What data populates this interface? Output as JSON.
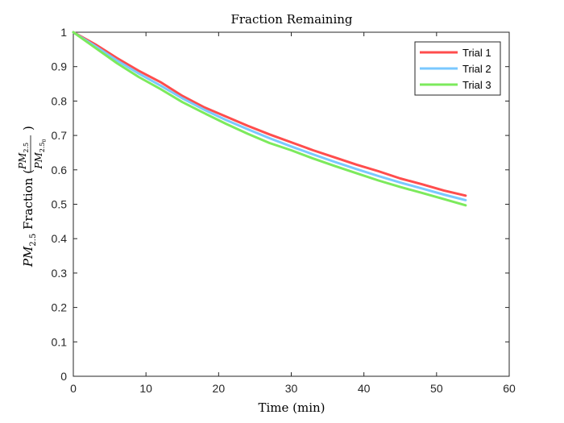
{
  "chart_data": {
    "type": "line",
    "title": "Fraction Remaining",
    "xlabel": "Time (min)",
    "ylabel": "PM2.5 Fraction (PM2.5/PM2.5_0)",
    "xlim": [
      0,
      60
    ],
    "ylim": [
      0,
      1
    ],
    "xticks": [
      "0",
      "10",
      "20",
      "30",
      "40",
      "50",
      "60"
    ],
    "yticks": [
      "0",
      "0.1",
      "0.2",
      "0.3",
      "0.4",
      "0.5",
      "0.6",
      "0.7",
      "0.8",
      "0.9",
      "1"
    ],
    "grid": false,
    "legend_position": "top-right",
    "x": [
      0,
      3,
      6,
      9,
      12,
      15,
      18,
      21,
      24,
      27,
      30,
      33,
      36,
      39,
      42,
      45,
      48,
      51,
      54
    ],
    "series": [
      {
        "name": "Trial 1",
        "color": "#ff4d4d",
        "values": [
          1.0,
          0.965,
          0.925,
          0.888,
          0.855,
          0.815,
          0.782,
          0.755,
          0.728,
          0.703,
          0.68,
          0.657,
          0.636,
          0.615,
          0.596,
          0.575,
          0.558,
          0.54,
          0.525
        ]
      },
      {
        "name": "Trial 2",
        "color": "#7ac8ff",
        "values": [
          1.0,
          0.96,
          0.918,
          0.88,
          0.845,
          0.808,
          0.775,
          0.745,
          0.718,
          0.692,
          0.668,
          0.645,
          0.623,
          0.602,
          0.582,
          0.563,
          0.546,
          0.528,
          0.512
        ]
      },
      {
        "name": "Trial 3",
        "color": "#7cea5c",
        "values": [
          1.0,
          0.955,
          0.91,
          0.87,
          0.835,
          0.797,
          0.765,
          0.734,
          0.705,
          0.678,
          0.657,
          0.633,
          0.611,
          0.59,
          0.569,
          0.55,
          0.533,
          0.515,
          0.497
        ]
      }
    ]
  }
}
